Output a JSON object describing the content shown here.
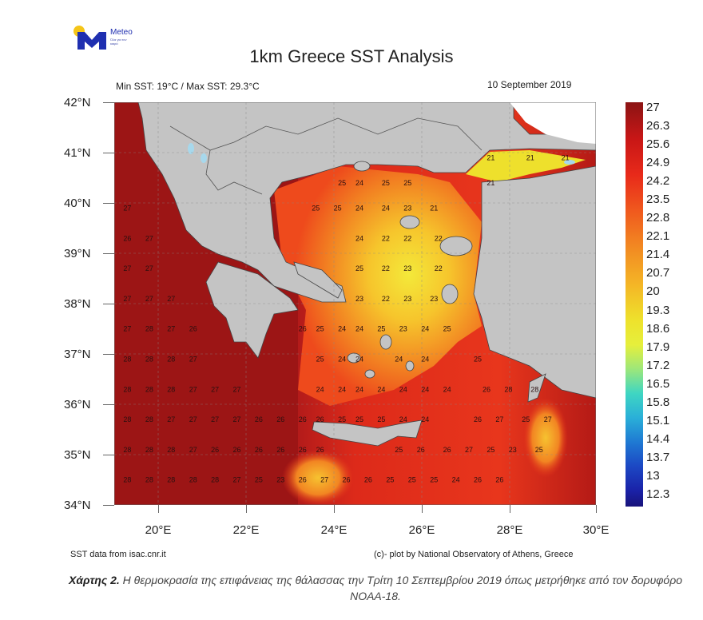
{
  "logo": {
    "brand": "Meteo",
    "tagline": "Όλα για τον καιρό",
    "colors": {
      "sun": "#f5c518",
      "mark": "#1f2fb0"
    }
  },
  "header": {
    "title": "1km Greece SST Analysis",
    "min_max": "Min SST: 19°C / Max SST: 29.3°C",
    "date": "10 September 2019"
  },
  "axes": {
    "lat_labels": [
      "42°N",
      "41°N",
      "40°N",
      "39°N",
      "38°N",
      "37°N",
      "36°N",
      "35°N",
      "34°N"
    ],
    "lon_labels": [
      "20°E",
      "22°E",
      "24°E",
      "26°E",
      "28°E",
      "30°E"
    ]
  },
  "colorbar": {
    "labels": [
      "27",
      "26.3",
      "25.6",
      "24.9",
      "24.2",
      "23.5",
      "22.8",
      "22.1",
      "21.4",
      "20.7",
      "20",
      "19.3",
      "18.6",
      "17.9",
      "17.2",
      "16.5",
      "15.8",
      "15.1",
      "14.4",
      "13.7",
      "13",
      "12.3"
    ],
    "colors": {
      "max": "#8b1414",
      "mid": "#eee22c",
      "min": "#18137a"
    }
  },
  "footer": {
    "source": "SST data from isac.cnr.it",
    "credit": "(c)- plot by National Observatory of Athens, Greece"
  },
  "caption": {
    "label": "Χάρτης 2.",
    "text": " Η θερμοκρασία της επιφάνειας της θάλασσας την Τρίτη 10 Σεπτεμβρίου 2019 όπως μετρήθηκε από τον δορυφόρο NOAA-18."
  },
  "map_values": [
    {
      "lon": 27.6,
      "lat": 40.85,
      "v": "21"
    },
    {
      "lon": 28.5,
      "lat": 40.85,
      "v": "21"
    },
    {
      "lon": 29.3,
      "lat": 40.85,
      "v": "21"
    },
    {
      "lon": 27.6,
      "lat": 40.35,
      "v": "21"
    },
    {
      "lon": 24.2,
      "lat": 40.35,
      "v": "25"
    },
    {
      "lon": 24.6,
      "lat": 40.35,
      "v": "24"
    },
    {
      "lon": 25.2,
      "lat": 40.35,
      "v": "25"
    },
    {
      "lon": 25.7,
      "lat": 40.35,
      "v": "25"
    },
    {
      "lon": 19.3,
      "lat": 39.85,
      "v": "27"
    },
    {
      "lon": 23.6,
      "lat": 39.85,
      "v": "25"
    },
    {
      "lon": 24.1,
      "lat": 39.85,
      "v": "25"
    },
    {
      "lon": 24.6,
      "lat": 39.85,
      "v": "24"
    },
    {
      "lon": 25.2,
      "lat": 39.85,
      "v": "24"
    },
    {
      "lon": 25.7,
      "lat": 39.85,
      "v": "23"
    },
    {
      "lon": 26.3,
      "lat": 39.85,
      "v": "21"
    },
    {
      "lon": 19.3,
      "lat": 39.25,
      "v": "26"
    },
    {
      "lon": 19.8,
      "lat": 39.25,
      "v": "27"
    },
    {
      "lon": 24.6,
      "lat": 39.25,
      "v": "24"
    },
    {
      "lon": 25.2,
      "lat": 39.25,
      "v": "22"
    },
    {
      "lon": 25.7,
      "lat": 39.25,
      "v": "22"
    },
    {
      "lon": 26.4,
      "lat": 39.25,
      "v": "22"
    },
    {
      "lon": 19.3,
      "lat": 38.65,
      "v": "27"
    },
    {
      "lon": 19.8,
      "lat": 38.65,
      "v": "27"
    },
    {
      "lon": 24.6,
      "lat": 38.65,
      "v": "25"
    },
    {
      "lon": 25.2,
      "lat": 38.65,
      "v": "22"
    },
    {
      "lon": 25.7,
      "lat": 38.65,
      "v": "23"
    },
    {
      "lon": 26.4,
      "lat": 38.65,
      "v": "22"
    },
    {
      "lon": 19.3,
      "lat": 38.05,
      "v": "27"
    },
    {
      "lon": 19.8,
      "lat": 38.05,
      "v": "27"
    },
    {
      "lon": 20.3,
      "lat": 38.05,
      "v": "27"
    },
    {
      "lon": 24.6,
      "lat": 38.05,
      "v": "23"
    },
    {
      "lon": 25.2,
      "lat": 38.05,
      "v": "22"
    },
    {
      "lon": 25.7,
      "lat": 38.05,
      "v": "23"
    },
    {
      "lon": 26.3,
      "lat": 38.05,
      "v": "23"
    },
    {
      "lon": 19.3,
      "lat": 37.45,
      "v": "27"
    },
    {
      "lon": 19.8,
      "lat": 37.45,
      "v": "28"
    },
    {
      "lon": 20.3,
      "lat": 37.45,
      "v": "27"
    },
    {
      "lon": 20.8,
      "lat": 37.45,
      "v": "26"
    },
    {
      "lon": 23.3,
      "lat": 37.45,
      "v": "26"
    },
    {
      "lon": 23.7,
      "lat": 37.45,
      "v": "25"
    },
    {
      "lon": 24.2,
      "lat": 37.45,
      "v": "24"
    },
    {
      "lon": 24.6,
      "lat": 37.45,
      "v": "24"
    },
    {
      "lon": 25.1,
      "lat": 37.45,
      "v": "25"
    },
    {
      "lon": 25.6,
      "lat": 37.45,
      "v": "23"
    },
    {
      "lon": 26.1,
      "lat": 37.45,
      "v": "24"
    },
    {
      "lon": 26.6,
      "lat": 37.45,
      "v": "25"
    },
    {
      "lon": 19.3,
      "lat": 36.85,
      "v": "28"
    },
    {
      "lon": 19.8,
      "lat": 36.85,
      "v": "28"
    },
    {
      "lon": 20.3,
      "lat": 36.85,
      "v": "28"
    },
    {
      "lon": 20.8,
      "lat": 36.85,
      "v": "27"
    },
    {
      "lon": 23.7,
      "lat": 36.85,
      "v": "25"
    },
    {
      "lon": 24.2,
      "lat": 36.85,
      "v": "24"
    },
    {
      "lon": 24.6,
      "lat": 36.85,
      "v": "24"
    },
    {
      "lon": 25.5,
      "lat": 36.85,
      "v": "24"
    },
    {
      "lon": 26.1,
      "lat": 36.85,
      "v": "24"
    },
    {
      "lon": 27.3,
      "lat": 36.85,
      "v": "25"
    },
    {
      "lon": 19.3,
      "lat": 36.25,
      "v": "28"
    },
    {
      "lon": 19.8,
      "lat": 36.25,
      "v": "28"
    },
    {
      "lon": 20.3,
      "lat": 36.25,
      "v": "28"
    },
    {
      "lon": 20.8,
      "lat": 36.25,
      "v": "27"
    },
    {
      "lon": 21.3,
      "lat": 36.25,
      "v": "27"
    },
    {
      "lon": 21.8,
      "lat": 36.25,
      "v": "27"
    },
    {
      "lon": 23.7,
      "lat": 36.25,
      "v": "24"
    },
    {
      "lon": 24.2,
      "lat": 36.25,
      "v": "24"
    },
    {
      "lon": 24.6,
      "lat": 36.25,
      "v": "24"
    },
    {
      "lon": 25.1,
      "lat": 36.25,
      "v": "24"
    },
    {
      "lon": 25.6,
      "lat": 36.25,
      "v": "24"
    },
    {
      "lon": 26.1,
      "lat": 36.25,
      "v": "24"
    },
    {
      "lon": 26.6,
      "lat": 36.25,
      "v": "24"
    },
    {
      "lon": 27.5,
      "lat": 36.25,
      "v": "26"
    },
    {
      "lon": 28.0,
      "lat": 36.25,
      "v": "28"
    },
    {
      "lon": 28.6,
      "lat": 36.25,
      "v": "28"
    },
    {
      "lon": 19.3,
      "lat": 35.65,
      "v": "28"
    },
    {
      "lon": 19.8,
      "lat": 35.65,
      "v": "28"
    },
    {
      "lon": 20.3,
      "lat": 35.65,
      "v": "27"
    },
    {
      "lon": 20.8,
      "lat": 35.65,
      "v": "27"
    },
    {
      "lon": 21.3,
      "lat": 35.65,
      "v": "27"
    },
    {
      "lon": 21.8,
      "lat": 35.65,
      "v": "27"
    },
    {
      "lon": 22.3,
      "lat": 35.65,
      "v": "26"
    },
    {
      "lon": 22.8,
      "lat": 35.65,
      "v": "26"
    },
    {
      "lon": 23.3,
      "lat": 35.65,
      "v": "26"
    },
    {
      "lon": 23.7,
      "lat": 35.65,
      "v": "26"
    },
    {
      "lon": 24.2,
      "lat": 35.65,
      "v": "25"
    },
    {
      "lon": 24.6,
      "lat": 35.65,
      "v": "25"
    },
    {
      "lon": 25.1,
      "lat": 35.65,
      "v": "25"
    },
    {
      "lon": 25.6,
      "lat": 35.65,
      "v": "24"
    },
    {
      "lon": 26.1,
      "lat": 35.65,
      "v": "24"
    },
    {
      "lon": 27.3,
      "lat": 35.65,
      "v": "26"
    },
    {
      "lon": 27.8,
      "lat": 35.65,
      "v": "27"
    },
    {
      "lon": 28.4,
      "lat": 35.65,
      "v": "25"
    },
    {
      "lon": 28.9,
      "lat": 35.65,
      "v": "27"
    },
    {
      "lon": 19.3,
      "lat": 35.05,
      "v": "28"
    },
    {
      "lon": 19.8,
      "lat": 35.05,
      "v": "28"
    },
    {
      "lon": 20.3,
      "lat": 35.05,
      "v": "28"
    },
    {
      "lon": 20.8,
      "lat": 35.05,
      "v": "27"
    },
    {
      "lon": 21.3,
      "lat": 35.05,
      "v": "26"
    },
    {
      "lon": 21.8,
      "lat": 35.05,
      "v": "26"
    },
    {
      "lon": 22.3,
      "lat": 35.05,
      "v": "26"
    },
    {
      "lon": 22.8,
      "lat": 35.05,
      "v": "26"
    },
    {
      "lon": 23.3,
      "lat": 35.05,
      "v": "26"
    },
    {
      "lon": 23.7,
      "lat": 35.05,
      "v": "26"
    },
    {
      "lon": 25.5,
      "lat": 35.05,
      "v": "25"
    },
    {
      "lon": 26.0,
      "lat": 35.05,
      "v": "26"
    },
    {
      "lon": 26.6,
      "lat": 35.05,
      "v": "26"
    },
    {
      "lon": 27.1,
      "lat": 35.05,
      "v": "27"
    },
    {
      "lon": 27.6,
      "lat": 35.05,
      "v": "25"
    },
    {
      "lon": 28.1,
      "lat": 35.05,
      "v": "23"
    },
    {
      "lon": 28.7,
      "lat": 35.05,
      "v": "25"
    },
    {
      "lon": 19.3,
      "lat": 34.45,
      "v": "28"
    },
    {
      "lon": 19.8,
      "lat": 34.45,
      "v": "28"
    },
    {
      "lon": 20.3,
      "lat": 34.45,
      "v": "28"
    },
    {
      "lon": 20.8,
      "lat": 34.45,
      "v": "28"
    },
    {
      "lon": 21.3,
      "lat": 34.45,
      "v": "28"
    },
    {
      "lon": 21.8,
      "lat": 34.45,
      "v": "27"
    },
    {
      "lon": 22.3,
      "lat": 34.45,
      "v": "25"
    },
    {
      "lon": 22.8,
      "lat": 34.45,
      "v": "23"
    },
    {
      "lon": 23.3,
      "lat": 34.45,
      "v": "26"
    },
    {
      "lon": 23.8,
      "lat": 34.45,
      "v": "27"
    },
    {
      "lon": 24.3,
      "lat": 34.45,
      "v": "26"
    },
    {
      "lon": 24.8,
      "lat": 34.45,
      "v": "26"
    },
    {
      "lon": 25.3,
      "lat": 34.45,
      "v": "25"
    },
    {
      "lon": 25.8,
      "lat": 34.45,
      "v": "25"
    },
    {
      "lon": 26.3,
      "lat": 34.45,
      "v": "25"
    },
    {
      "lon": 26.8,
      "lat": 34.45,
      "v": "24"
    },
    {
      "lon": 27.3,
      "lat": 34.45,
      "v": "26"
    },
    {
      "lon": 27.8,
      "lat": 34.45,
      "v": "26"
    }
  ]
}
